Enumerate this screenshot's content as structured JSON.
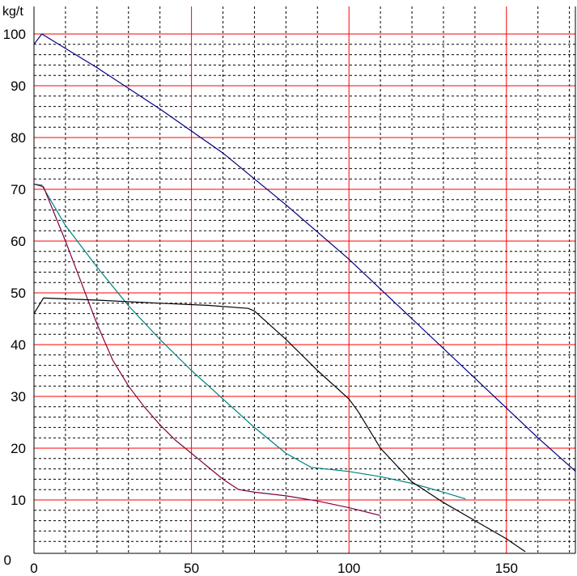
{
  "chart_data": {
    "type": "line",
    "ylabel_unit": "kg/t",
    "xlim": [
      0,
      172
    ],
    "ylim": [
      0,
      100
    ],
    "x_ticks": [
      0,
      50,
      100,
      150
    ],
    "y_ticks": [
      0,
      10,
      20,
      30,
      40,
      50,
      60,
      70,
      80,
      90,
      100
    ],
    "grid": {
      "major_color": "#ff0000",
      "minor_color": "#000000",
      "minor_style": "dashed",
      "x_major_step": 50,
      "x_minor_step": 10,
      "y_major_step": 10,
      "y_minor_step": 2
    },
    "background": "#ffffff",
    "series": [
      {
        "color": "#000080",
        "x": [
          0,
          2.5,
          20,
          40,
          60,
          80,
          100,
          120,
          140,
          160,
          172
        ],
        "y": [
          98,
          100,
          93.5,
          85.5,
          77,
          67,
          56.5,
          45,
          33.5,
          22,
          15.5
        ]
      },
      {
        "color": "#008080",
        "x": [
          0,
          2.5,
          10,
          20,
          30,
          40,
          50,
          60,
          70,
          80,
          88,
          100,
          110,
          120,
          130,
          137
        ],
        "y": [
          71,
          70.8,
          63,
          55,
          47.5,
          41,
          35,
          29.5,
          24,
          19,
          16.3,
          15.5,
          14.5,
          13.2,
          11.5,
          10.2
        ]
      },
      {
        "color": "#800040",
        "x": [
          0,
          3,
          10,
          15,
          20,
          25,
          30,
          35,
          40,
          45,
          50,
          55,
          60,
          65,
          70,
          80,
          90,
          100,
          110
        ],
        "y": [
          71,
          70.5,
          60,
          52,
          44,
          37,
          32,
          28,
          24.5,
          21.5,
          19,
          16.5,
          14,
          12,
          11.5,
          10.8,
          9.8,
          8.5,
          7
        ]
      },
      {
        "color": "#000000",
        "x": [
          0,
          3,
          20,
          40,
          55,
          68,
          70,
          80,
          90,
          100,
          103,
          110,
          120,
          130,
          140,
          150,
          156
        ],
        "y": [
          46,
          49,
          48.6,
          48,
          47.6,
          47,
          46.5,
          41,
          35,
          29.5,
          27,
          20,
          13.5,
          9.5,
          6,
          2.5,
          0
        ]
      }
    ]
  }
}
